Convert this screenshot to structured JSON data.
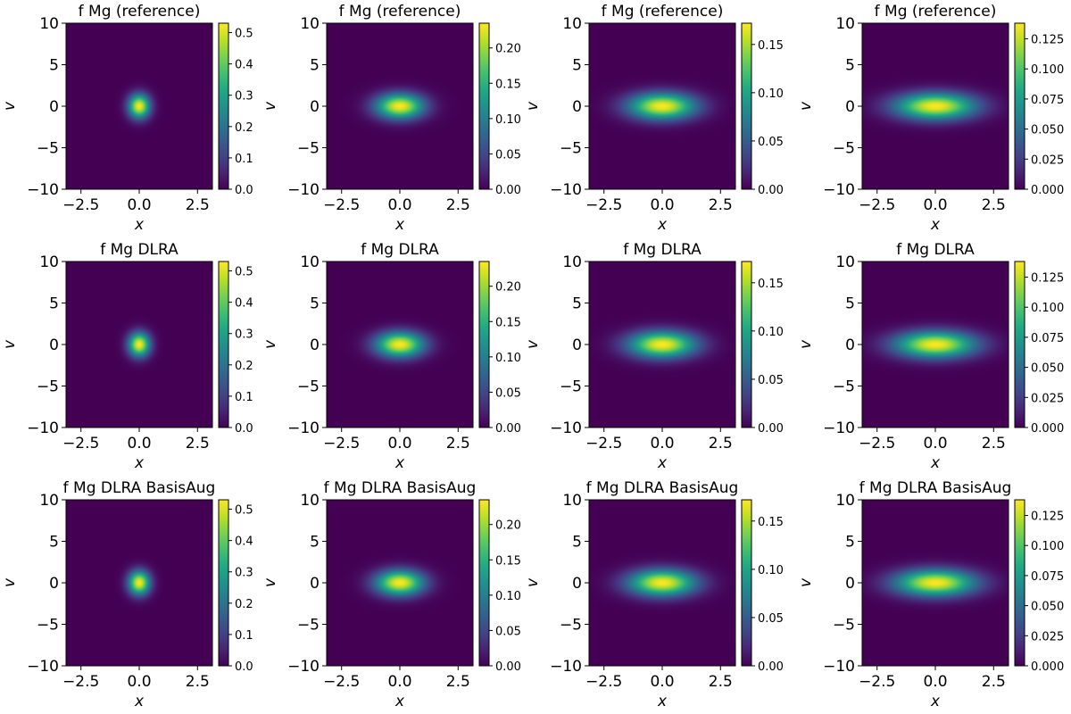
{
  "chart_data": {
    "type": "heatmap",
    "layout": {
      "rows": 3,
      "cols": 4
    },
    "colormap": "viridis",
    "xlabel": "x",
    "ylabel": "v",
    "xlim": [
      -3.14,
      3.14
    ],
    "ylim": [
      -10,
      10
    ],
    "xticks": [
      -2.5,
      0.0,
      2.5
    ],
    "xtick_labels": [
      "−2.5",
      "0.0",
      "2.5"
    ],
    "yticks": [
      -10,
      -5,
      0,
      5,
      10
    ],
    "ytick_labels": [
      "−10",
      "−5",
      "0",
      "5",
      "10"
    ],
    "row_titles": [
      "f Mg (reference)",
      "f Mg DLRA",
      "f Mg DLRA BasisAug"
    ],
    "columns": [
      {
        "center": [
          0,
          0
        ],
        "sigma_x": 0.32,
        "sigma_v": 1.0,
        "peak": 0.53,
        "colorbar": {
          "min": 0,
          "max": 0.53,
          "ticks": [
            0,
            0.1,
            0.2,
            0.3,
            0.4,
            0.5
          ],
          "tick_labels": [
            "0.0",
            "0.1",
            "0.2",
            "0.3",
            "0.4",
            "0.5"
          ]
        }
      },
      {
        "center": [
          0,
          0
        ],
        "sigma_x": 0.72,
        "sigma_v": 1.05,
        "peak": 0.235,
        "colorbar": {
          "min": 0,
          "max": 0.235,
          "ticks": [
            0,
            0.05,
            0.1,
            0.15,
            0.2
          ],
          "tick_labels": [
            "0.00",
            "0.05",
            "0.10",
            "0.15",
            "0.20"
          ]
        }
      },
      {
        "center": [
          0,
          0
        ],
        "sigma_x": 1.0,
        "sigma_v": 1.1,
        "peak": 0.172,
        "colorbar": {
          "min": 0,
          "max": 0.172,
          "ticks": [
            0,
            0.05,
            0.1,
            0.15
          ],
          "tick_labels": [
            "0.00",
            "0.05",
            "0.10",
            "0.15"
          ]
        }
      },
      {
        "center": [
          0,
          0
        ],
        "sigma_x": 1.2,
        "sigma_v": 1.1,
        "peak": 0.138,
        "colorbar": {
          "min": 0,
          "max": 0.138,
          "ticks": [
            0,
            0.025,
            0.05,
            0.075,
            0.1,
            0.125
          ],
          "tick_labels": [
            "0.000",
            "0.025",
            "0.050",
            "0.075",
            "0.100",
            "0.125"
          ]
        }
      }
    ]
  }
}
